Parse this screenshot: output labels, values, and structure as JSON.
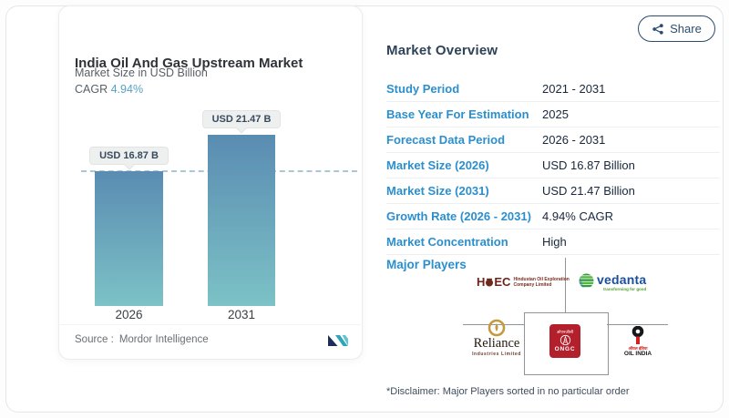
{
  "share": {
    "label": "Share"
  },
  "chart_card": {
    "title": "India Oil And Gas Upstream Market",
    "subtitle": "Market Size in USD Billion",
    "cagr_label": "CAGR",
    "cagr_value": "4.94%",
    "source_label": "Source :",
    "source_value": "Mordor Intelligence"
  },
  "chart_data": {
    "type": "bar",
    "categories": [
      "2026",
      "2031"
    ],
    "values": [
      16.87,
      21.47
    ],
    "value_labels": [
      "USD 16.87 B",
      "USD 21.47 B"
    ],
    "unit": "USD Billion",
    "title": "India Oil And Gas Upstream Market",
    "ylabel": "Market Size in USD Billion",
    "ylim": [
      0,
      21.47
    ],
    "grid": false,
    "legend": false,
    "reference_line": {
      "style": "dashed",
      "at_value": 16.87
    },
    "bar_gradient_top": "#5a8cb2",
    "bar_gradient_bottom": "#7cc2c6"
  },
  "overview": {
    "title": "Market Overview",
    "rows": [
      {
        "label": "Study Period",
        "value": "2021 - 2031"
      },
      {
        "label": "Base Year For Estimation",
        "value": "2025"
      },
      {
        "label": "Forecast Data Period",
        "value": "2026 - 2031"
      },
      {
        "label": "Market Size (2026)",
        "value": "USD 16.87 Billion"
      },
      {
        "label": "Market Size (2031)",
        "value": "USD 21.47 Billion"
      },
      {
        "label": "Growth Rate (2026 - 2031)",
        "value": "4.94% CAGR"
      },
      {
        "label": "Market Concentration",
        "value": "High"
      }
    ],
    "major_players_label": "Major Players",
    "players": {
      "hoec": {
        "mono_left": "H",
        "mono_right": "EC",
        "line1": "Hindustan Oil Exploration",
        "line2": "Company Limited"
      },
      "vedanta": {
        "name": "vedanta",
        "tagline": "transforming for good"
      },
      "reliance": {
        "name": "Reliance",
        "sub": "Industries Limited"
      },
      "ongc": {
        "hindi": "ओएनजीसी",
        "name": "ONGC"
      },
      "oil_india": {
        "hindi": "ऑयल इंडिया",
        "name": "OIL INDIA"
      }
    },
    "disclaimer": "*Disclaimer: Major Players sorted in no particular order"
  },
  "colors": {
    "accent_label_blue": "#2b8fce",
    "value_navy": "#18273b",
    "cagr_blue": "#55a3c4",
    "share_navy": "#2e4d70",
    "bar_top": "#5a8cb2",
    "bar_bottom": "#7cc2c6",
    "ongc_red": "#b3202c",
    "vedanta_blue": "#1a4f9c",
    "vedanta_green": "#4ba12e",
    "reliance_gold": "#c49a3f",
    "hoec_maroon": "#6e2419",
    "oil_india_red": "#d0231f"
  }
}
